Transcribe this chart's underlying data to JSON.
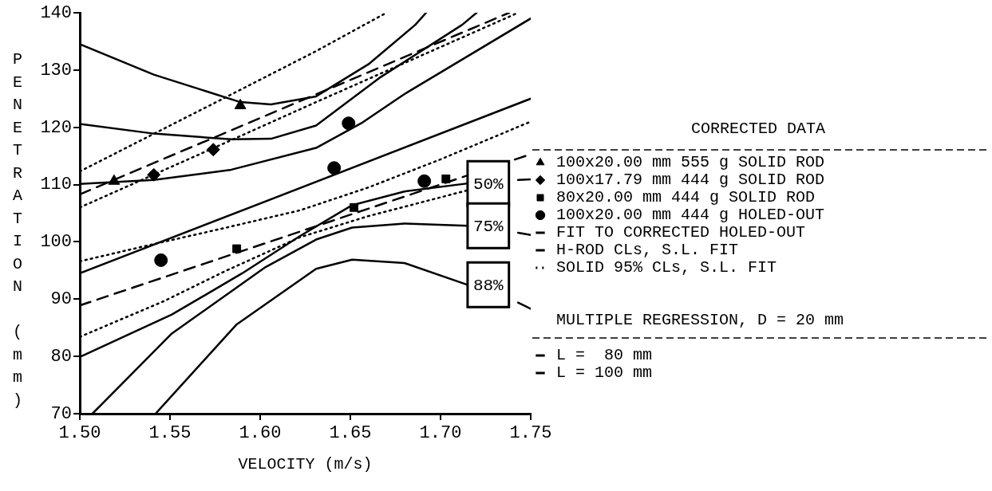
{
  "chart_data": {
    "type": "scatter",
    "xlabel": "VELOCITY (m/s)",
    "ylabel": "PENETRATION (mm)",
    "legend_title": "CORRECTED DATA",
    "legend": "right",
    "xlim": [
      1.5,
      1.75
    ],
    "ylim": [
      70,
      140
    ],
    "xticks": [
      {
        "value": 1.5,
        "label": "1.50"
      },
      {
        "value": 1.55,
        "label": "1.55"
      },
      {
        "value": 1.6,
        "label": "1.60"
      },
      {
        "value": 1.65,
        "label": "1.65"
      },
      {
        "value": 1.7,
        "label": "1.70"
      },
      {
        "value": 1.75,
        "label": "1.75"
      }
    ],
    "yticks": [
      70,
      80,
      90,
      100,
      110,
      120,
      130,
      140
    ],
    "annotations": [
      "MULTIPLE REGRESSION, D = 20 mm",
      "50%",
      "75%",
      "88%"
    ],
    "series": [
      {
        "name": "100x20.00 mm 555 g SOLID ROD",
        "marker": "triangle",
        "color": "#000000",
        "x": [
          1.519,
          1.589
        ],
        "values": [
          110.6,
          123.8
        ]
      },
      {
        "name": "100x17.79 mm 444 g SOLID ROD",
        "marker": "diamond",
        "color": "#000000",
        "x": [
          1.541,
          1.574
        ],
        "values": [
          111.7,
          116.1
        ]
      },
      {
        "name": "80x20.00 mm 444 g SOLID ROD",
        "marker": "square",
        "color": "#000000",
        "x": [
          1.587,
          1.652,
          1.703
        ],
        "values": [
          98.8,
          106.0,
          111.0
        ]
      },
      {
        "name": "100x20.00 mm 444 g HOLED-OUT",
        "marker": "circle",
        "color": "#000000",
        "x": [
          1.545,
          1.641,
          1.649,
          1.691
        ],
        "values": [
          96.8,
          112.9,
          120.7,
          110.6
        ]
      },
      {
        "name": "FIT TO CORRECTED HOLED-OUT",
        "type": "line",
        "line_style": "solid",
        "color": "#000000",
        "x": [
          1.5,
          1.75
        ],
        "values": [
          94.5,
          125.0
        ]
      },
      {
        "name": "H-ROD CLs, S.L. FIT",
        "type": "line",
        "line_style": "solid",
        "color": "#000000",
        "x": [
          1.5,
          1.541,
          1.584,
          1.631,
          1.656,
          1.68,
          1.75
        ],
        "values": [
          110.1,
          110.8,
          112.6,
          116.4,
          120.7,
          125.8,
          139.0
        ]
      },
      {
        "type": "line",
        "line_style": "solid",
        "color": "#000000",
        "x": [
          1.5,
          1.541,
          1.584,
          1.606,
          1.631,
          1.666,
          1.712,
          1.72
        ],
        "values": [
          120.6,
          118.9,
          117.9,
          118.0,
          120.3,
          128.6,
          137.9,
          140.0
        ]
      },
      {
        "type": "line",
        "line_style": "solid",
        "color": "#000000",
        "x": [
          1.5,
          1.541,
          1.589,
          1.606,
          1.631,
          1.66,
          1.686,
          1.692
        ],
        "values": [
          134.5,
          129.2,
          124.4,
          124.0,
          125.4,
          131.0,
          137.9,
          140.0
        ]
      },
      {
        "type": "line",
        "line_style": "solid",
        "color": "#000000",
        "x": [
          1.5,
          1.551,
          1.59,
          1.622,
          1.651,
          1.68,
          1.715,
          1.729,
          1.743,
          1.75
        ],
        "values": [
          79.9,
          87.3,
          94.5,
          101.0,
          106.4,
          108.8,
          110.2,
          null,
          110.8,
          110.9
        ]
      },
      {
        "type": "line",
        "line_style": "solid",
        "color": "#000000",
        "x": [
          1.507,
          1.551,
          1.603,
          1.631,
          1.651,
          1.68,
          1.715,
          1.729,
          1.743,
          1.75
        ],
        "values": [
          70.0,
          84.0,
          95.6,
          100.4,
          102.5,
          103.2,
          102.8,
          null,
          101.6,
          101.2
        ]
      },
      {
        "type": "line",
        "line_style": "solid",
        "color": "#000000",
        "x": [
          1.542,
          1.587,
          1.631,
          1.651,
          1.68,
          1.715,
          1.729,
          1.743,
          1.75
        ],
        "values": [
          70.0,
          85.6,
          95.3,
          96.9,
          96.3,
          92.5,
          null,
          89.4,
          88.3
        ]
      },
      {
        "name": "SOLID 95% CLs, S.L. FIT",
        "type": "line",
        "line_style": "dotted",
        "color": "#000000",
        "x": [
          1.5,
          1.58,
          1.631,
          1.67
        ],
        "values": [
          112.3,
          125.1,
          133.3,
          140.0
        ]
      },
      {
        "type": "line",
        "line_style": "dotted",
        "color": "#000000",
        "x": [
          1.5,
          1.58,
          1.631,
          1.743
        ],
        "values": [
          106.0,
          117.2,
          124.4,
          140.0
        ]
      },
      {
        "type": "line",
        "line_style": "dotted",
        "color": "#000000",
        "x": [
          1.5,
          1.538,
          1.58,
          1.622,
          1.66,
          1.7,
          1.75
        ],
        "values": [
          96.6,
          99.4,
          102.4,
          105.5,
          109.5,
          114.4,
          121.0
        ]
      },
      {
        "type": "line",
        "line_style": "dotted",
        "color": "#000000",
        "x": [
          1.5,
          1.547,
          1.58,
          1.622,
          1.66,
          1.715
        ],
        "values": [
          83.4,
          89.7,
          94.8,
          100.8,
          104.5,
          109.0
        ]
      },
      {
        "name": "L =  80 mm",
        "type": "line",
        "line_style": "dashed",
        "color": "#000000",
        "x": [
          1.5,
          1.75
        ],
        "values": [
          88.9,
          115.3
        ]
      },
      {
        "name": "L = 100 mm",
        "type": "line",
        "line_style": "dashed",
        "color": "#000000",
        "x": [
          1.5,
          1.738
        ],
        "values": [
          108.3,
          140.0
        ]
      }
    ]
  }
}
